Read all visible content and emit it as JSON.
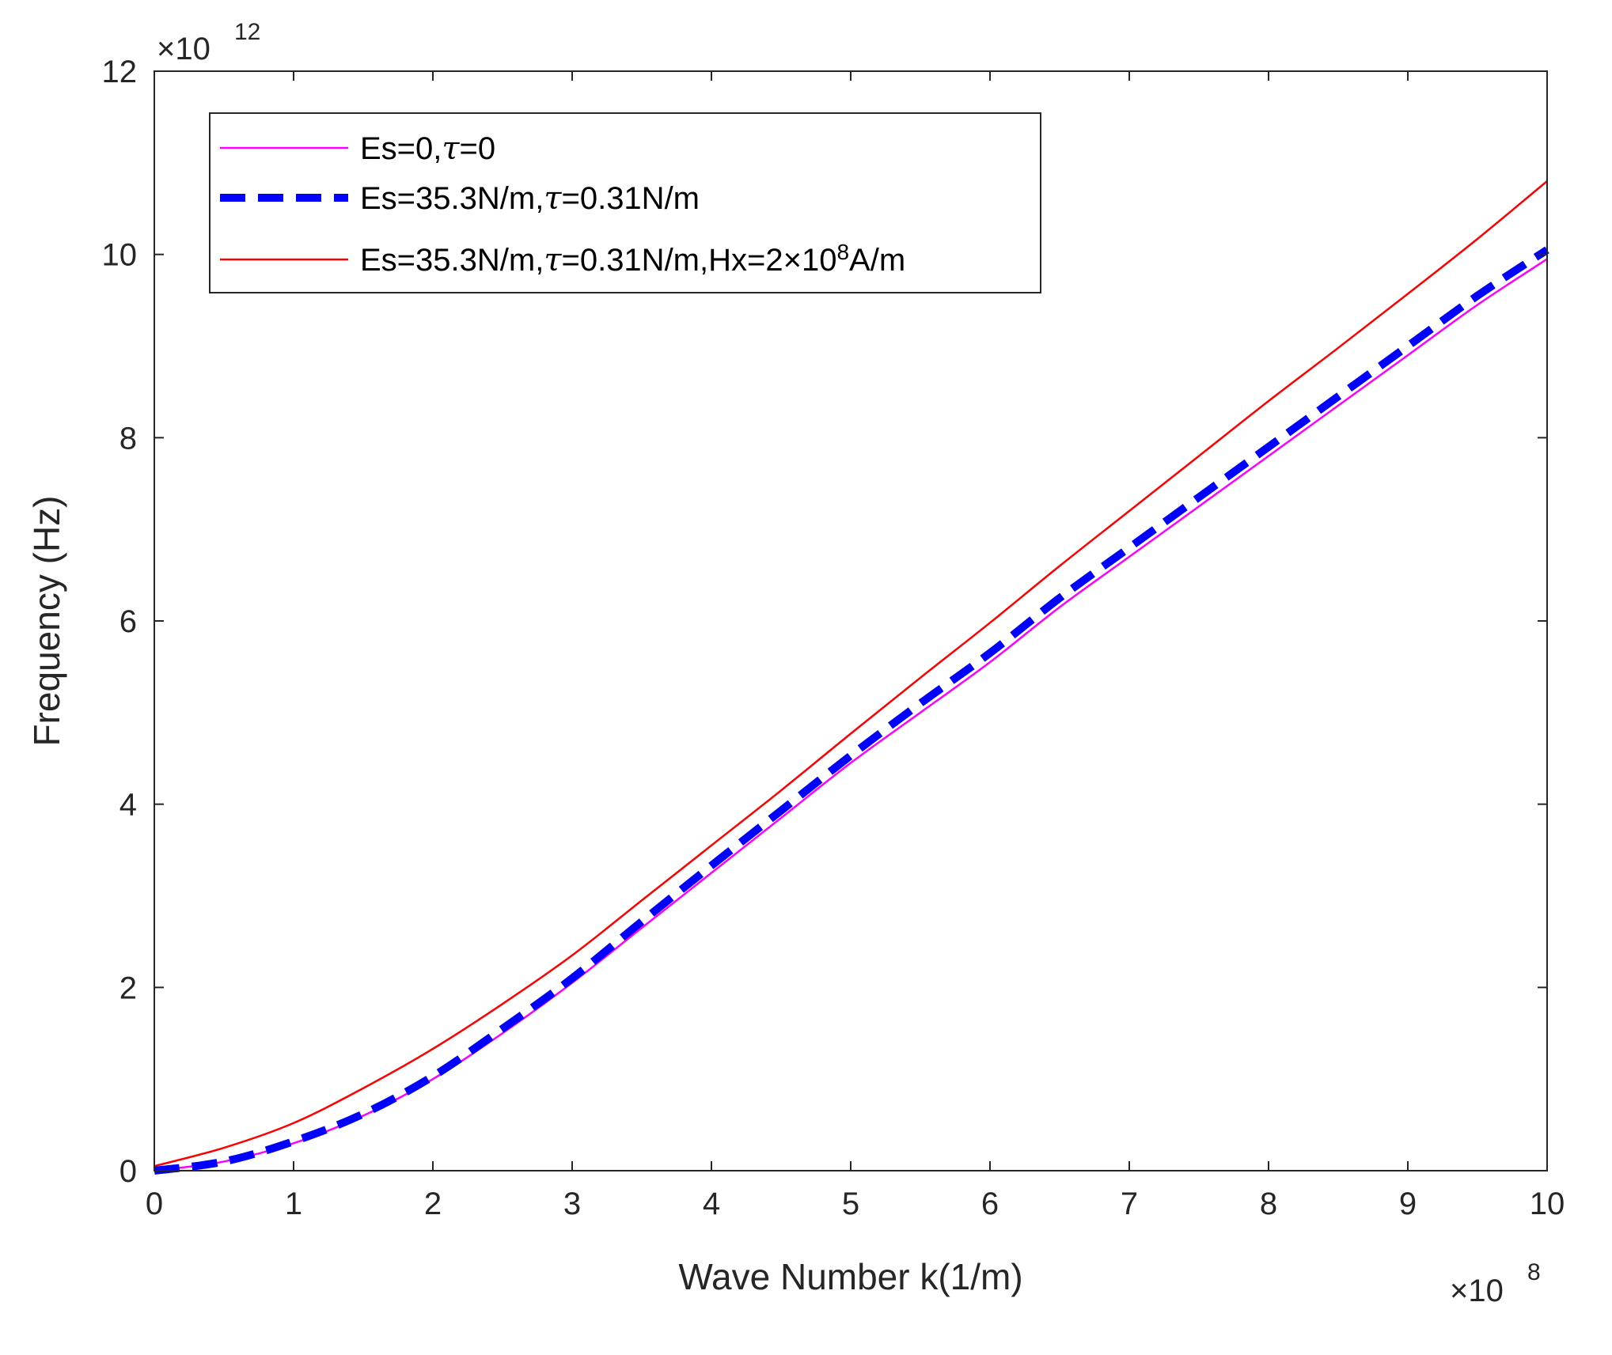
{
  "chart_data": {
    "type": "line",
    "title": "",
    "xlabel": "Wave Number k(1/m)",
    "ylabel": "Frequency (Hz)",
    "xlim": [
      0,
      10
    ],
    "ylim": [
      0,
      12
    ],
    "x_exponent": {
      "base": "×10",
      "power": "8"
    },
    "y_exponent": {
      "base": "×10",
      "power": "12"
    },
    "xticks": [
      0,
      1,
      2,
      3,
      4,
      5,
      6,
      7,
      8,
      9,
      10
    ],
    "yticks": [
      0,
      2,
      4,
      6,
      8,
      10,
      12
    ],
    "grid": false,
    "legend_position": "top-left",
    "x": [
      0,
      0.5,
      1,
      1.5,
      2,
      2.5,
      3,
      3.5,
      4,
      4.5,
      5,
      5.5,
      6,
      6.5,
      7,
      7.5,
      8,
      8.5,
      9,
      9.5,
      10
    ],
    "series": [
      {
        "name": "Es=0,τ=0",
        "label_parts": [
          {
            "t": "Es=0,"
          },
          {
            "t": "τ",
            "italic": true
          },
          {
            "t": "=0"
          }
        ],
        "color": "#ff00ff",
        "style": "solid",
        "values": [
          0,
          0.1,
          0.3,
          0.6,
          1.0,
          1.5,
          2.05,
          2.65,
          3.25,
          3.85,
          4.45,
          5.0,
          5.55,
          6.15,
          6.7,
          7.25,
          7.8,
          8.35,
          8.9,
          9.45,
          9.95
        ]
      },
      {
        "name": "Es=35.3N/m,τ=0.31N/m",
        "label_parts": [
          {
            "t": "Es=35.3N/m,"
          },
          {
            "t": "τ",
            "italic": true
          },
          {
            "t": "=0.31N/m"
          }
        ],
        "color": "#0000ff",
        "style": "dashed",
        "values": [
          0,
          0.1,
          0.32,
          0.62,
          1.03,
          1.55,
          2.1,
          2.72,
          3.33,
          3.93,
          4.53,
          5.1,
          5.65,
          6.25,
          6.8,
          7.35,
          7.9,
          8.45,
          9.0,
          9.55,
          10.05
        ]
      },
      {
        "name": "Es=35.3N/m,τ=0.31N/m,Hx=2×10^8A/m",
        "label_parts": [
          {
            "t": "Es=35.3N/m,"
          },
          {
            "t": "τ",
            "italic": true
          },
          {
            "t": "=0.31N/m,Hx=2×10"
          },
          {
            "t": "8",
            "sup": true
          },
          {
            "t": "A/m"
          }
        ],
        "color": "#ff0000",
        "style": "solid",
        "values": [
          0.05,
          0.25,
          0.52,
          0.9,
          1.33,
          1.82,
          2.35,
          2.95,
          3.55,
          4.15,
          4.77,
          5.38,
          5.98,
          6.6,
          7.2,
          7.8,
          8.4,
          8.98,
          9.57,
          10.17,
          10.8
        ]
      }
    ]
  }
}
